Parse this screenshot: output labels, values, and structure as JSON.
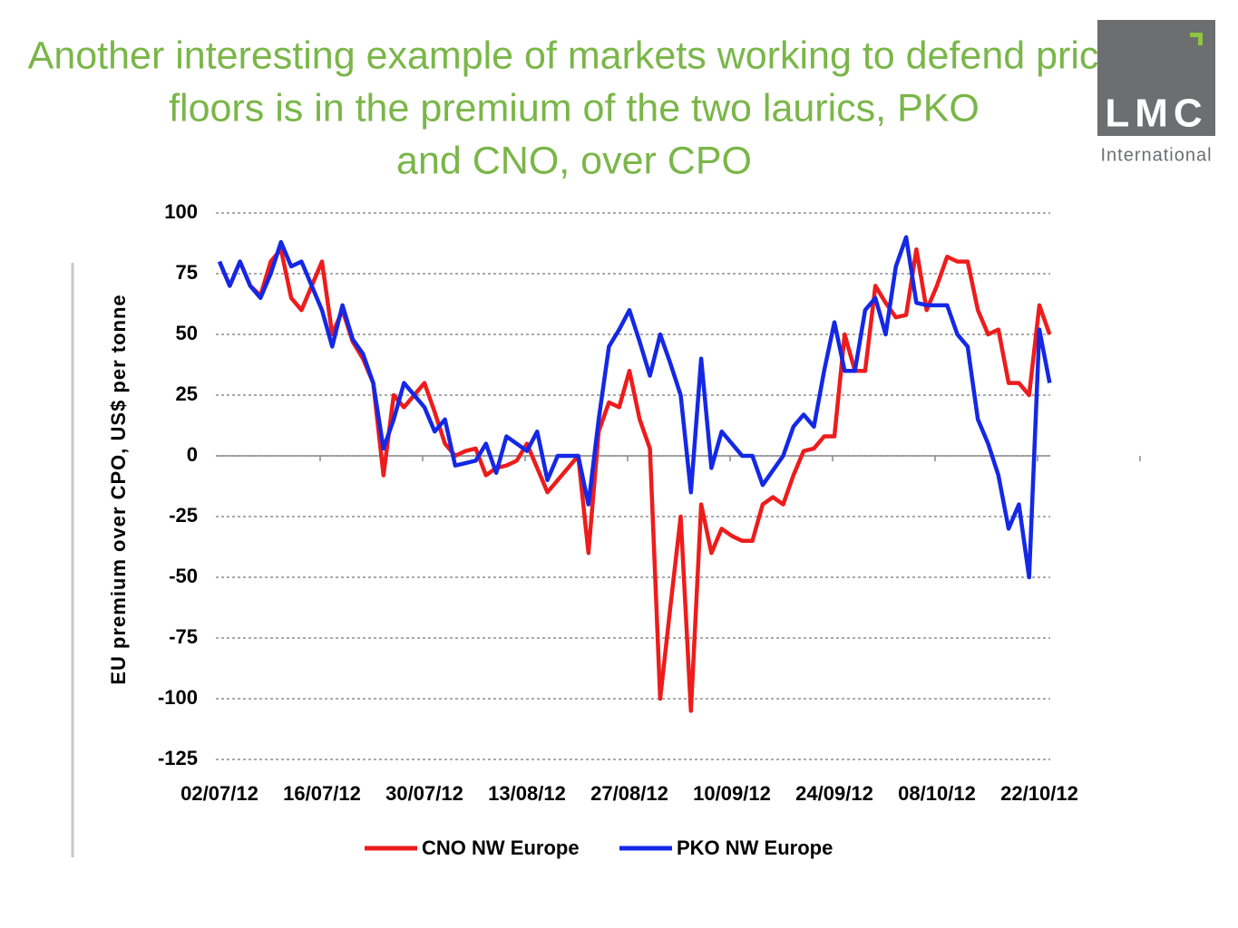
{
  "title": "Another interesting example of markets working to defend price floors is in the premium of the two laurics, PKO and CNO, over CPO",
  "logo": {
    "name": "LMC",
    "subtitle": "International"
  },
  "chart_data": {
    "type": "line",
    "y_label": "EU premium over CPO, US$ per tonne",
    "categories": [
      "02/07/12",
      null,
      null,
      null,
      null,
      null,
      null,
      null,
      null,
      null,
      "16/07/12",
      null,
      null,
      null,
      null,
      null,
      null,
      null,
      null,
      null,
      "30/07/12",
      null,
      null,
      null,
      null,
      null,
      null,
      null,
      null,
      null,
      "13/08/12",
      null,
      null,
      null,
      null,
      null,
      null,
      null,
      null,
      null,
      "27/08/12",
      null,
      null,
      null,
      null,
      null,
      null,
      null,
      null,
      null,
      "10/09/12",
      null,
      null,
      null,
      null,
      null,
      null,
      null,
      null,
      null,
      "24/09/12",
      null,
      null,
      null,
      null,
      null,
      null,
      null,
      null,
      null,
      "08/10/12",
      null,
      null,
      null,
      null,
      null,
      null,
      null,
      null,
      null,
      "22/10/12",
      null
    ],
    "series": [
      {
        "name": "CNO NW Europe",
        "color": "#ee1c1c",
        "values": [
          80,
          70,
          80,
          70,
          66,
          80,
          85,
          65,
          60,
          70,
          80,
          50,
          60,
          47,
          40,
          30,
          -8,
          25,
          20,
          25,
          30,
          18,
          5,
          0,
          2,
          3,
          -8,
          -5,
          -4,
          -2,
          5,
          -5,
          -15,
          -10,
          -5,
          0,
          -40,
          10,
          22,
          20,
          35,
          15,
          3,
          -100,
          -62,
          -25,
          -105,
          -20,
          -40,
          -30,
          -33,
          -35,
          -35,
          -20,
          -17,
          -20,
          -8,
          2,
          3,
          8,
          8,
          50,
          35,
          35,
          70,
          63,
          57,
          58,
          85,
          60,
          70,
          82,
          80,
          80,
          60,
          50,
          52,
          30,
          30,
          25,
          62,
          50
        ]
      },
      {
        "name": "PKO NW Europe",
        "color": "#1428e6",
        "values": [
          80,
          70,
          80,
          70,
          65,
          75,
          88,
          78,
          80,
          70,
          60,
          45,
          62,
          48,
          42,
          30,
          3,
          15,
          30,
          25,
          20,
          10,
          15,
          -4,
          -3,
          -2,
          5,
          -7,
          8,
          5,
          2,
          10,
          -10,
          0,
          0,
          0,
          -20,
          15,
          45,
          52,
          60,
          47,
          33,
          50,
          38,
          25,
          -15,
          40,
          -5,
          10,
          5,
          0,
          0,
          -12,
          -6,
          0,
          12,
          17,
          12,
          35,
          55,
          35,
          35,
          60,
          65,
          50,
          78,
          90,
          63,
          62,
          62,
          62,
          50,
          45,
          15,
          5,
          -8,
          -30,
          -20,
          -50,
          52,
          30
        ]
      }
    ],
    "ylim": [
      -125,
      100
    ],
    "yticks": [
      -125,
      -100,
      -75,
      -50,
      -25,
      0,
      25,
      50,
      75,
      100
    ],
    "grid": true,
    "legend": "bottom"
  }
}
